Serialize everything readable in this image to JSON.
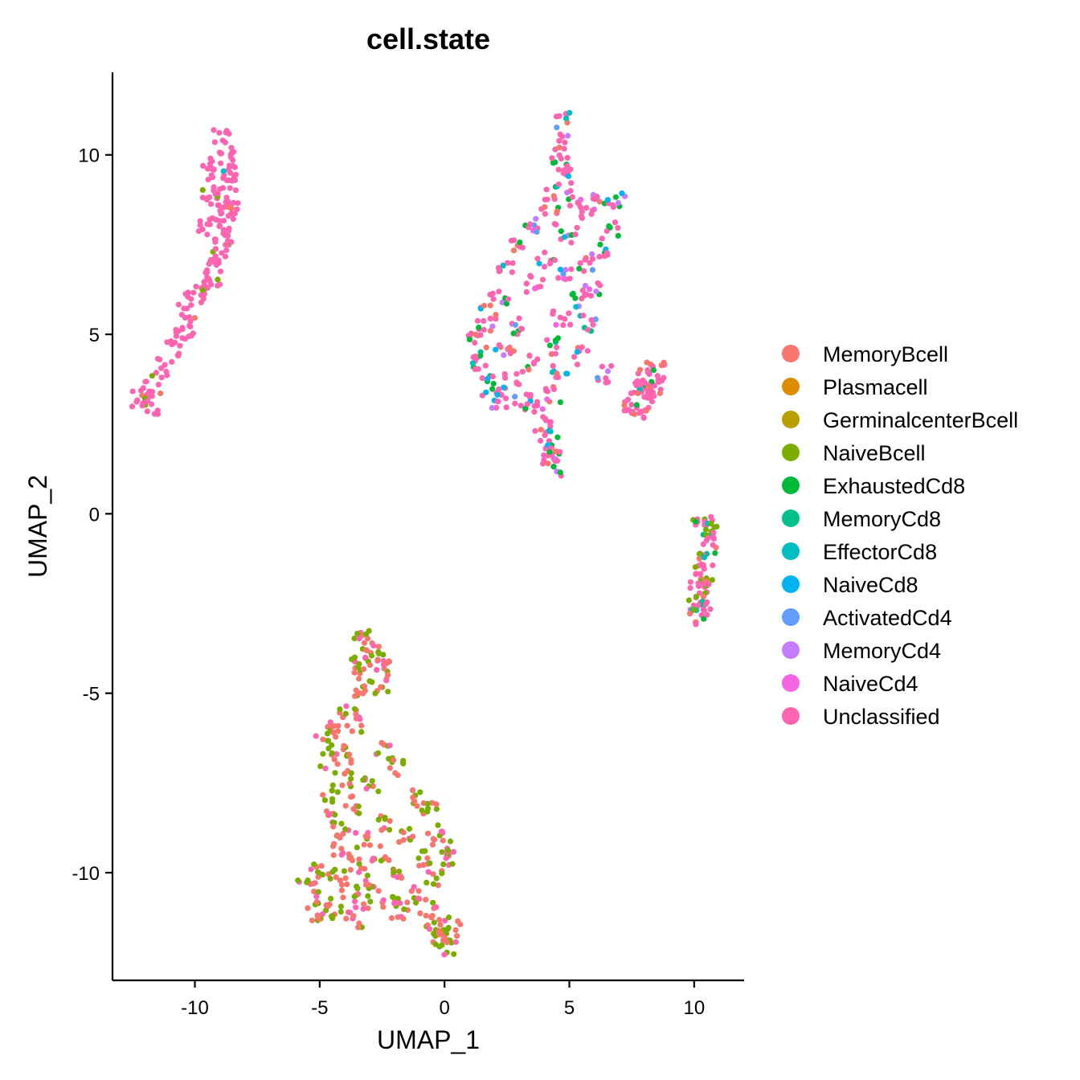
{
  "chart_data": {
    "type": "scatter",
    "title": "cell.state",
    "xlabel": "UMAP_1",
    "ylabel": "UMAP_2",
    "xlim": [
      -13.3,
      12.0
    ],
    "ylim": [
      -13.0,
      12.3
    ],
    "xticks": [
      -10,
      -5,
      0,
      5,
      10
    ],
    "yticks": [
      -10,
      -5,
      0,
      5,
      10
    ],
    "grid": false,
    "legend_position": "right",
    "series": [
      {
        "name": "MemoryBcell",
        "color": "#F8766D"
      },
      {
        "name": "Plasmacell",
        "color": "#DE8C00"
      },
      {
        "name": "GerminalcenterBcell",
        "color": "#B79F00"
      },
      {
        "name": "NaiveBcell",
        "color": "#7CAE00"
      },
      {
        "name": "ExhaustedCd8",
        "color": "#00BA38"
      },
      {
        "name": "MemoryCd8",
        "color": "#00C08B"
      },
      {
        "name": "EffectorCd8",
        "color": "#00BFC4"
      },
      {
        "name": "NaiveCd8",
        "color": "#00B4F0"
      },
      {
        "name": "ActivatedCd4",
        "color": "#619CFF"
      },
      {
        "name": "MemoryCd4",
        "color": "#C77CFF"
      },
      {
        "name": "NaiveCd4",
        "color": "#F564E3"
      },
      {
        "name": "Unclassified",
        "color": "#FF64B0"
      }
    ],
    "clusters": [
      {
        "cluster": "top-left",
        "composition": {
          "Unclassified": 0.93,
          "MemoryBcell": 0.03,
          "NaiveBcell": 0.03,
          "EffectorCd8": 0.01
        },
        "points": [
          [
            -9.0,
            10.5
          ],
          [
            -8.8,
            10.1
          ],
          [
            -9.3,
            9.8
          ],
          [
            -8.7,
            9.6
          ],
          [
            -9.1,
            9.4
          ],
          [
            -8.5,
            9.2
          ],
          [
            -9.4,
            9.0
          ],
          [
            -8.9,
            8.8
          ],
          [
            -8.6,
            8.6
          ],
          [
            -9.2,
            8.4
          ],
          [
            -8.8,
            8.2
          ],
          [
            -9.5,
            8.0
          ],
          [
            -9.0,
            7.8
          ],
          [
            -8.9,
            7.5
          ],
          [
            -9.1,
            7.2
          ],
          [
            -9.2,
            6.9
          ],
          [
            -9.3,
            6.6
          ],
          [
            -9.6,
            6.3
          ],
          [
            -10.0,
            6.0
          ],
          [
            -10.3,
            5.6
          ],
          [
            -10.4,
            5.2
          ],
          [
            -10.6,
            4.9
          ],
          [
            -10.9,
            4.6
          ],
          [
            -11.3,
            4.1
          ],
          [
            -11.7,
            3.6
          ],
          [
            -12.0,
            3.2
          ],
          [
            -11.8,
            3.0
          ],
          [
            -12.2,
            3.2
          ]
        ]
      },
      {
        "cluster": "top-center",
        "composition": {
          "Unclassified": 0.58,
          "ExhaustedCd8": 0.14,
          "MemoryBcell": 0.08,
          "NaiveCd8": 0.05,
          "EffectorCd8": 0.04,
          "MemoryCd4": 0.04,
          "NaiveCd4": 0.03,
          "ActivatedCd4": 0.02,
          "MemoryCd8": 0.02
        },
        "points": [
          [
            4.7,
            11.0
          ],
          [
            4.8,
            10.4
          ],
          [
            4.6,
            9.9
          ],
          [
            4.9,
            9.4
          ],
          [
            4.4,
            9.0
          ],
          [
            5.2,
            8.8
          ],
          [
            6.3,
            8.8
          ],
          [
            6.9,
            8.7
          ],
          [
            5.8,
            8.4
          ],
          [
            4.2,
            8.3
          ],
          [
            3.5,
            8.0
          ],
          [
            6.6,
            7.9
          ],
          [
            5.0,
            7.8
          ],
          [
            3.0,
            7.4
          ],
          [
            6.2,
            7.3
          ],
          [
            4.1,
            7.1
          ],
          [
            5.6,
            6.9
          ],
          [
            2.5,
            6.8
          ],
          [
            4.8,
            6.6
          ],
          [
            3.6,
            6.4
          ],
          [
            6.0,
            6.3
          ],
          [
            2.2,
            6.1
          ],
          [
            5.3,
            6.0
          ],
          [
            1.8,
            5.6
          ],
          [
            4.7,
            5.5
          ],
          [
            1.6,
            5.2
          ],
          [
            5.7,
            5.3
          ],
          [
            3.0,
            5.2
          ],
          [
            1.3,
            4.8
          ],
          [
            4.3,
            4.7
          ],
          [
            2.4,
            4.5
          ],
          [
            5.5,
            4.4
          ],
          [
            1.2,
            4.3
          ],
          [
            3.5,
            4.2
          ],
          [
            1.6,
            3.9
          ],
          [
            4.6,
            4.0
          ],
          [
            2.7,
            3.7
          ],
          [
            6.4,
            3.9
          ],
          [
            1.8,
            3.4
          ],
          [
            3.1,
            3.1
          ],
          [
            4.4,
            3.3
          ],
          [
            2.2,
            3.2
          ],
          [
            3.6,
            2.9
          ],
          [
            3.9,
            2.5
          ],
          [
            4.2,
            2.1
          ],
          [
            4.3,
            1.8
          ],
          [
            4.3,
            1.5
          ],
          [
            4.4,
            1.3
          ]
        ]
      },
      {
        "cluster": "right-small",
        "composition": {
          "Unclassified": 0.8,
          "MemoryBcell": 0.1,
          "EffectorCd8": 0.06,
          "ExhaustedCd8": 0.04
        },
        "points": [
          [
            8.1,
            4.1
          ],
          [
            8.5,
            4.0
          ],
          [
            7.8,
            3.7
          ],
          [
            8.3,
            3.6
          ],
          [
            8.6,
            3.5
          ],
          [
            7.6,
            3.3
          ],
          [
            8.1,
            3.2
          ],
          [
            7.5,
            3.0
          ],
          [
            7.8,
            2.9
          ],
          [
            8.0,
            3.4
          ]
        ]
      },
      {
        "cluster": "far-right",
        "composition": {
          "Unclassified": 0.6,
          "NaiveBcell": 0.2,
          "MemoryBcell": 0.1,
          "ExhaustedCd8": 0.04,
          "MemoryCd8": 0.03,
          "EffectorCd8": 0.03
        },
        "points": [
          [
            10.3,
            -0.1
          ],
          [
            10.5,
            -0.4
          ],
          [
            10.7,
            -0.6
          ],
          [
            10.6,
            -0.9
          ],
          [
            10.5,
            -1.3
          ],
          [
            10.4,
            -1.6
          ],
          [
            10.3,
            -1.9
          ],
          [
            10.2,
            -2.1
          ],
          [
            10.1,
            -2.3
          ],
          [
            10.2,
            -2.5
          ],
          [
            10.3,
            -2.7
          ],
          [
            10.2,
            -2.9
          ]
        ]
      },
      {
        "cluster": "bottom",
        "composition": {
          "MemoryBcell": 0.45,
          "NaiveBcell": 0.4,
          "Unclassified": 0.15
        },
        "points": [
          [
            -3.3,
            -3.5
          ],
          [
            -3.0,
            -3.7
          ],
          [
            -3.4,
            -4.0
          ],
          [
            -2.8,
            -4.1
          ],
          [
            -2.5,
            -4.3
          ],
          [
            -3.3,
            -4.5
          ],
          [
            -2.6,
            -4.8
          ],
          [
            -3.5,
            -5.0
          ],
          [
            -3.9,
            -5.6
          ],
          [
            -3.6,
            -5.9
          ],
          [
            -4.4,
            -6.0
          ],
          [
            -4.8,
            -6.3
          ],
          [
            -2.4,
            -6.6
          ],
          [
            -3.8,
            -6.7
          ],
          [
            -4.6,
            -6.9
          ],
          [
            -2.0,
            -7.1
          ],
          [
            -4.1,
            -7.4
          ],
          [
            -3.0,
            -7.6
          ],
          [
            -4.6,
            -7.8
          ],
          [
            -1.2,
            -7.9
          ],
          [
            -3.6,
            -8.1
          ],
          [
            -4.4,
            -8.4
          ],
          [
            -0.6,
            -8.3
          ],
          [
            -2.4,
            -8.6
          ],
          [
            -4.2,
            -8.8
          ],
          [
            -0.3,
            -8.9
          ],
          [
            -1.6,
            -9.0
          ],
          [
            -3.2,
            -9.1
          ],
          [
            -0.1,
            -9.3
          ],
          [
            -4.1,
            -9.4
          ],
          [
            -2.6,
            -9.5
          ],
          [
            -0.9,
            -9.6
          ],
          [
            0.3,
            -9.6
          ],
          [
            -3.5,
            -9.8
          ],
          [
            -1.8,
            -9.9
          ],
          [
            -5.0,
            -10.0
          ],
          [
            -4.3,
            -10.1
          ],
          [
            -0.4,
            -10.2
          ],
          [
            -2.8,
            -10.3
          ],
          [
            -5.5,
            -10.3
          ],
          [
            -3.8,
            -10.5
          ],
          [
            -1.2,
            -10.6
          ],
          [
            -4.9,
            -10.7
          ],
          [
            -2.2,
            -10.8
          ],
          [
            -3.3,
            -10.9
          ],
          [
            -0.7,
            -11.0
          ],
          [
            -4.5,
            -11.1
          ],
          [
            -1.8,
            -11.1
          ],
          [
            -5.2,
            -11.2
          ],
          [
            -3.6,
            -11.3
          ],
          [
            -0.2,
            -11.4
          ],
          [
            0.3,
            -11.6
          ],
          [
            -0.5,
            -11.7
          ],
          [
            0.0,
            -11.9
          ],
          [
            0.1,
            -12.1
          ]
        ]
      }
    ]
  }
}
